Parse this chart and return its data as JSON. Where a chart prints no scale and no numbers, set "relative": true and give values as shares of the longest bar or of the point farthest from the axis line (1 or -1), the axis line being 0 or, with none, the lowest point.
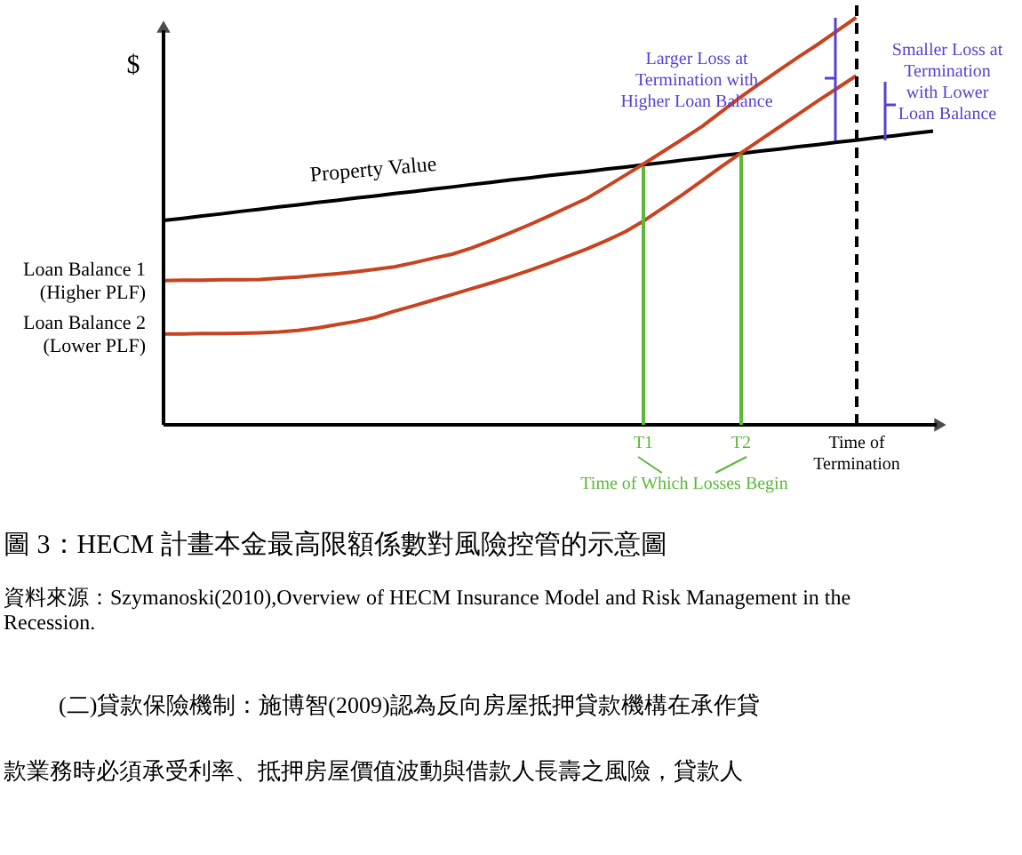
{
  "chart_data": {
    "type": "line",
    "relative": true,
    "grid": false,
    "marker": "none",
    "title": "圖 3：HECM 計畫本金最高限額係數對風險控管的示意圖",
    "ylabel": "$",
    "categories": [
      null,
      null,
      null,
      null,
      null,
      null,
      null,
      null,
      null,
      null,
      null,
      null,
      null,
      null,
      null,
      null,
      null,
      null,
      null,
      null,
      null,
      null,
      null,
      null,
      null,
      null,
      null,
      null,
      null,
      null,
      null,
      null,
      null,
      null,
      null,
      null,
      null,
      null,
      null,
      null,
      null
    ],
    "series": [
      {
        "name": "Property Value",
        "color": "#000000",
        "values": [
          0.502,
          0.507,
          0.513,
          0.518,
          0.524,
          0.529,
          0.535,
          0.54,
          0.546,
          0.551,
          0.557,
          0.562,
          0.568,
          0.573,
          0.579,
          0.584,
          0.59,
          0.595,
          0.601,
          0.606,
          0.612,
          0.617,
          0.622,
          0.628,
          0.633,
          0.639,
          0.644,
          0.65,
          0.655,
          0.661,
          0.666,
          0.672,
          0.677,
          0.683,
          0.688,
          0.694,
          0.699,
          0.705,
          0.71,
          0.716,
          0.721
        ]
      },
      {
        "name": "Loan Balance 1\n(Higher PLF)",
        "color": "#c8431f",
        "values": [
          0.354,
          0.355,
          0.355,
          0.356,
          0.356,
          0.357,
          0.36,
          0.363,
          0.367,
          0.371,
          0.376,
          0.382,
          0.388,
          0.398,
          0.409,
          0.419,
          0.434,
          0.452,
          0.471,
          0.491,
          0.512,
          0.534,
          0.556,
          0.584,
          0.613,
          0.642,
          0.672,
          0.702,
          0.733,
          0.769,
          0.805,
          0.838,
          0.871,
          0.903,
          0.934,
          0.967,
          1.0,
          null,
          null,
          null,
          null
        ]
      },
      {
        "name": "Loan Balance 2\n(Lower PLF)",
        "color": "#c8431f",
        "values": [
          0.223,
          0.223,
          0.224,
          0.224,
          0.225,
          0.226,
          0.228,
          0.232,
          0.238,
          0.246,
          0.254,
          0.264,
          0.279,
          0.292,
          0.306,
          0.32,
          0.334,
          0.348,
          0.363,
          0.379,
          0.396,
          0.414,
          0.432,
          0.452,
          0.474,
          0.502,
          0.534,
          0.566,
          0.6,
          0.634,
          0.667,
          0.699,
          0.731,
          0.763,
          0.795,
          0.826,
          0.857,
          null,
          null,
          null,
          null
        ]
      }
    ],
    "annotations": [
      "T1",
      "T2",
      "Time of\nTermination",
      "Time of Which Losses Begin",
      "Larger Loss at\nTermination with\nHigher Loan Balance",
      "Smaller Loss at\nTermination\nwith Lower\nLoan Balance",
      "資料來源：Szymanoski(2010),Overview of HECM Insurance Model and Risk Management in the Recession.",
      "(二)貸款保險機制：施博智(2009)認為反向房屋抵押貸款機構在承作貸",
      "款業務時必須承受利率、抵押房屋價值波動與借款人長壽之風險，貸款人"
    ]
  }
}
